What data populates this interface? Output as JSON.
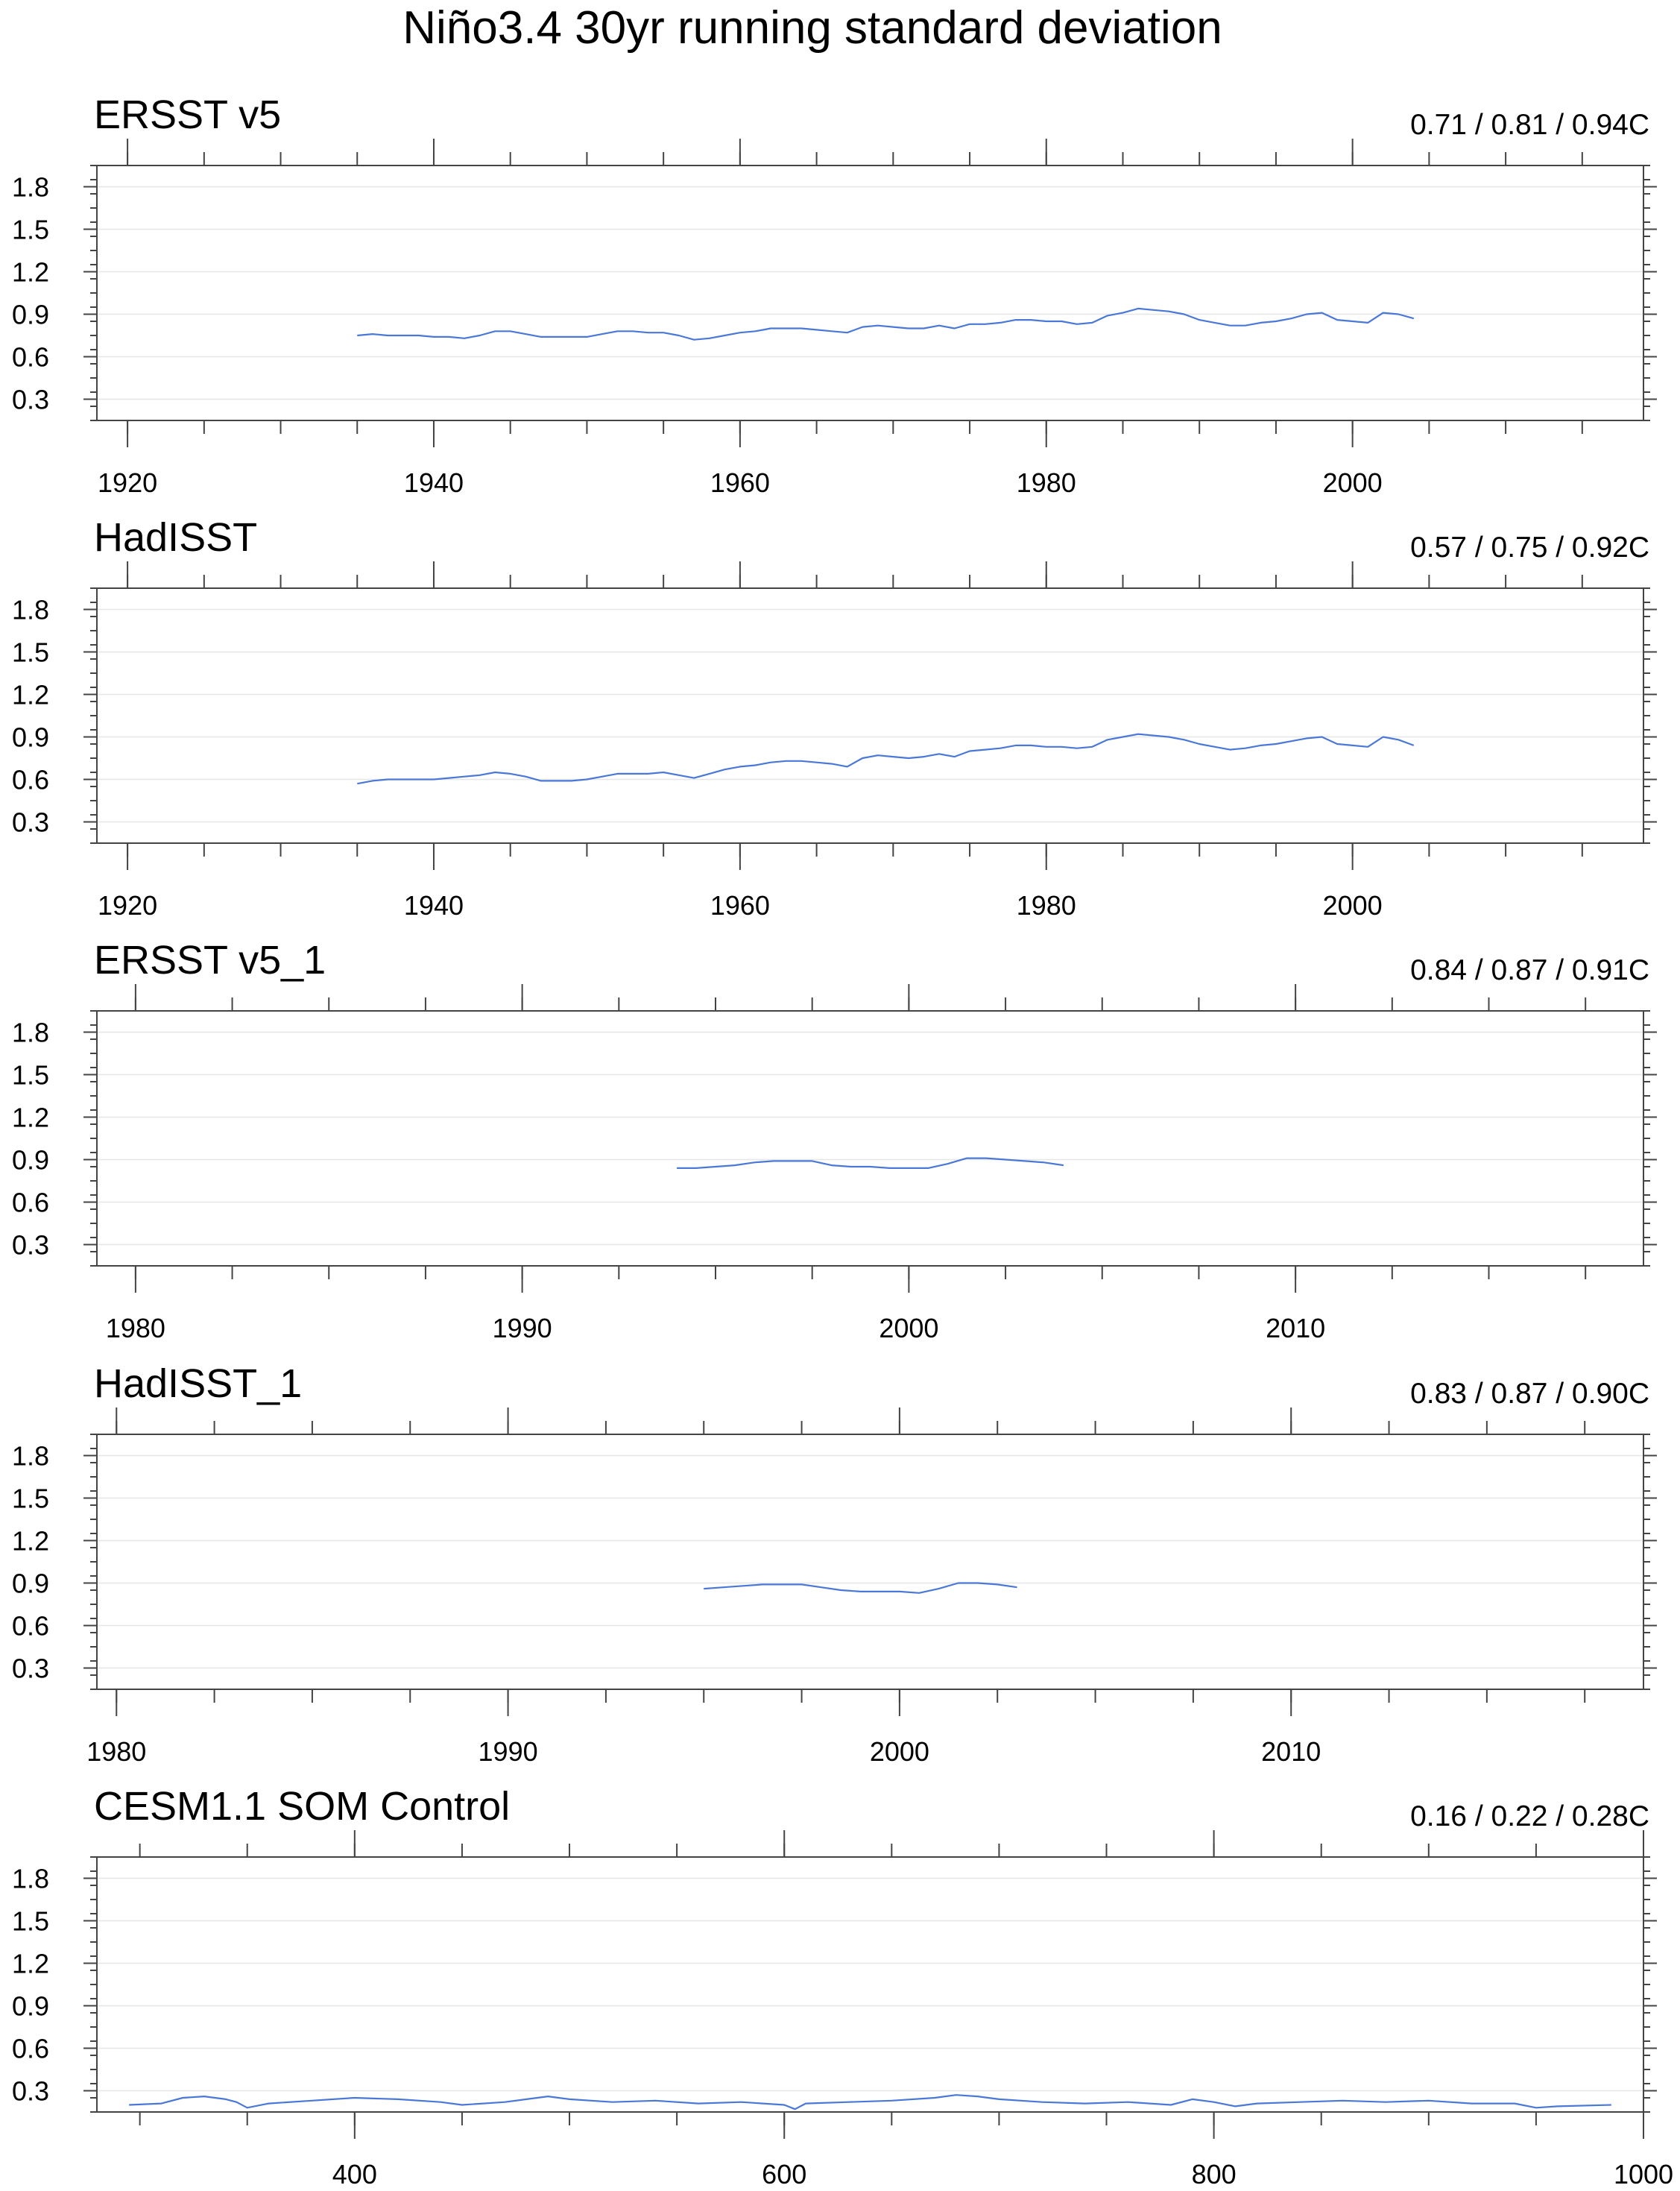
{
  "title": "Niño3.4 30yr running standard deviation",
  "colors": {
    "series": "#4a78d8",
    "frame": "#444444",
    "grid": "#e6e6e6"
  },
  "chart_data": [
    {
      "type": "line",
      "title": "ERSST v5",
      "stats": "0.71 / 0.81 / 0.94C",
      "xlim": [
        1918,
        2019
      ],
      "ylim": [
        0.15,
        1.95
      ],
      "xticks": [
        1920,
        1940,
        1960,
        1980,
        2000
      ],
      "yticks": [
        0.3,
        0.6,
        0.9,
        1.2,
        1.5,
        1.8
      ],
      "ytick_labels": [
        "0.3",
        "0.6",
        "0.9",
        "1.2",
        "1.5",
        "1.8"
      ],
      "grid": true,
      "x": [
        1935,
        1936,
        1937,
        1938,
        1939,
        1940,
        1941,
        1942,
        1943,
        1944,
        1945,
        1946,
        1947,
        1948,
        1949,
        1950,
        1951,
        1952,
        1953,
        1954,
        1955,
        1956,
        1957,
        1958,
        1959,
        1960,
        1961,
        1962,
        1963,
        1964,
        1965,
        1966,
        1967,
        1968,
        1969,
        1970,
        1971,
        1972,
        1973,
        1974,
        1975,
        1976,
        1977,
        1978,
        1979,
        1980,
        1981,
        1982,
        1983,
        1984,
        1985,
        1986,
        1987,
        1988,
        1989,
        1990,
        1991,
        1992,
        1993,
        1994,
        1995,
        1996,
        1997,
        1998,
        1999,
        2000,
        2001,
        2002,
        2003,
        2004
      ],
      "series": [
        {
          "values": [
            0.75,
            0.76,
            0.75,
            0.75,
            0.75,
            0.74,
            0.74,
            0.73,
            0.75,
            0.78,
            0.78,
            0.76,
            0.74,
            0.74,
            0.74,
            0.74,
            0.76,
            0.78,
            0.78,
            0.77,
            0.77,
            0.75,
            0.72,
            0.73,
            0.75,
            0.77,
            0.78,
            0.8,
            0.8,
            0.8,
            0.79,
            0.78,
            0.77,
            0.81,
            0.82,
            0.81,
            0.8,
            0.8,
            0.82,
            0.8,
            0.83,
            0.83,
            0.84,
            0.86,
            0.86,
            0.85,
            0.85,
            0.83,
            0.84,
            0.89,
            0.91,
            0.94,
            0.93,
            0.92,
            0.9,
            0.86,
            0.84,
            0.82,
            0.82,
            0.84,
            0.85,
            0.87,
            0.9,
            0.91,
            0.86,
            0.85,
            0.84,
            0.91,
            0.9,
            0.87
          ]
        }
      ]
    },
    {
      "type": "line",
      "title": "HadISST",
      "stats": "0.57 / 0.75 / 0.92C",
      "xlim": [
        1918,
        2019
      ],
      "ylim": [
        0.15,
        1.95
      ],
      "xticks": [
        1920,
        1940,
        1960,
        1980,
        2000
      ],
      "yticks": [
        0.3,
        0.6,
        0.9,
        1.2,
        1.5,
        1.8
      ],
      "ytick_labels": [
        "0.3",
        "0.6",
        "0.9",
        "1.2",
        "1.5",
        "1.8"
      ],
      "grid": true,
      "x": [
        1935,
        1936,
        1937,
        1938,
        1939,
        1940,
        1941,
        1942,
        1943,
        1944,
        1945,
        1946,
        1947,
        1948,
        1949,
        1950,
        1951,
        1952,
        1953,
        1954,
        1955,
        1956,
        1957,
        1958,
        1959,
        1960,
        1961,
        1962,
        1963,
        1964,
        1965,
        1966,
        1967,
        1968,
        1969,
        1970,
        1971,
        1972,
        1973,
        1974,
        1975,
        1976,
        1977,
        1978,
        1979,
        1980,
        1981,
        1982,
        1983,
        1984,
        1985,
        1986,
        1987,
        1988,
        1989,
        1990,
        1991,
        1992,
        1993,
        1994,
        1995,
        1996,
        1997,
        1998,
        1999,
        2000,
        2001,
        2002,
        2003,
        2004
      ],
      "series": [
        {
          "values": [
            0.57,
            0.59,
            0.6,
            0.6,
            0.6,
            0.6,
            0.61,
            0.62,
            0.63,
            0.65,
            0.64,
            0.62,
            0.59,
            0.59,
            0.59,
            0.6,
            0.62,
            0.64,
            0.64,
            0.64,
            0.65,
            0.63,
            0.61,
            0.64,
            0.67,
            0.69,
            0.7,
            0.72,
            0.73,
            0.73,
            0.72,
            0.71,
            0.69,
            0.75,
            0.77,
            0.76,
            0.75,
            0.76,
            0.78,
            0.76,
            0.8,
            0.81,
            0.82,
            0.84,
            0.84,
            0.83,
            0.83,
            0.82,
            0.83,
            0.88,
            0.9,
            0.92,
            0.91,
            0.9,
            0.88,
            0.85,
            0.83,
            0.81,
            0.82,
            0.84,
            0.85,
            0.87,
            0.89,
            0.9,
            0.85,
            0.84,
            0.83,
            0.9,
            0.88,
            0.84
          ]
        }
      ]
    },
    {
      "type": "line",
      "title": "ERSST v5_1",
      "stats": "0.84 / 0.87 / 0.91C",
      "xlim": [
        1979,
        2019
      ],
      "ylim": [
        0.15,
        1.95
      ],
      "xticks": [
        1980,
        1990,
        2000,
        2010
      ],
      "yticks": [
        0.3,
        0.6,
        0.9,
        1.2,
        1.5,
        1.8
      ],
      "ytick_labels": [
        "0.3",
        "0.6",
        "0.9",
        "1.2",
        "1.5",
        "1.8"
      ],
      "grid": true,
      "x": [
        1994.0,
        1994.5,
        1995.0,
        1995.5,
        1996.0,
        1996.5,
        1997.0,
        1997.5,
        1998.0,
        1998.5,
        1999.0,
        1999.5,
        2000.0,
        2000.5,
        2001.0,
        2001.5,
        2002.0,
        2002.5,
        2003.0,
        2003.5,
        2004.0
      ],
      "series": [
        {
          "values": [
            0.84,
            0.84,
            0.85,
            0.86,
            0.88,
            0.89,
            0.89,
            0.89,
            0.86,
            0.85,
            0.85,
            0.84,
            0.84,
            0.84,
            0.87,
            0.91,
            0.91,
            0.9,
            0.89,
            0.88,
            0.86
          ]
        }
      ]
    },
    {
      "type": "line",
      "title": "HadISST_1",
      "stats": "0.83 / 0.87 / 0.90C",
      "xlim": [
        1979.5,
        2019
      ],
      "ylim": [
        0.15,
        1.95
      ],
      "xticks": [
        1980,
        1990,
        2000,
        2010
      ],
      "yticks": [
        0.3,
        0.6,
        0.9,
        1.2,
        1.5,
        1.8
      ],
      "ytick_labels": [
        "0.3",
        "0.6",
        "0.9",
        "1.2",
        "1.5",
        "1.8"
      ],
      "grid": true,
      "x": [
        1995.0,
        1995.5,
        1996.0,
        1996.5,
        1997.0,
        1997.5,
        1998.0,
        1998.5,
        1999.0,
        1999.5,
        2000.0,
        2000.5,
        2001.0,
        2001.5,
        2002.0,
        2002.5,
        2003.0
      ],
      "series": [
        {
          "values": [
            0.86,
            0.87,
            0.88,
            0.89,
            0.89,
            0.89,
            0.87,
            0.85,
            0.84,
            0.84,
            0.84,
            0.83,
            0.86,
            0.9,
            0.9,
            0.89,
            0.87
          ]
        }
      ]
    },
    {
      "type": "line",
      "title": "CESM1.1 SOM Control",
      "stats": "0.16 / 0.22 / 0.28C",
      "xlim": [
        280,
        1000
      ],
      "ylim": [
        0.15,
        1.95
      ],
      "xticks": [
        400,
        600,
        800,
        1000
      ],
      "yticks": [
        0.3,
        0.6,
        0.9,
        1.2,
        1.5,
        1.8
      ],
      "ytick_labels": [
        "0.3",
        "0.6",
        "0.9",
        "1.2",
        "1.5",
        "1.8"
      ],
      "grid": true,
      "x": [
        295,
        310,
        320,
        330,
        340,
        345,
        350,
        360,
        380,
        400,
        420,
        440,
        450,
        470,
        480,
        490,
        500,
        520,
        540,
        560,
        580,
        600,
        605,
        610,
        630,
        650,
        670,
        680,
        690,
        700,
        720,
        740,
        760,
        780,
        790,
        800,
        810,
        820,
        840,
        860,
        880,
        900,
        920,
        940,
        950,
        960,
        985
      ],
      "series": [
        {
          "values": [
            0.2,
            0.21,
            0.25,
            0.26,
            0.24,
            0.22,
            0.18,
            0.21,
            0.23,
            0.25,
            0.24,
            0.22,
            0.2,
            0.22,
            0.24,
            0.26,
            0.24,
            0.22,
            0.23,
            0.21,
            0.22,
            0.2,
            0.17,
            0.21,
            0.22,
            0.23,
            0.25,
            0.27,
            0.26,
            0.24,
            0.22,
            0.21,
            0.22,
            0.2,
            0.24,
            0.22,
            0.19,
            0.21,
            0.22,
            0.23,
            0.22,
            0.23,
            0.21,
            0.21,
            0.18,
            0.19,
            0.2
          ]
        }
      ]
    }
  ]
}
